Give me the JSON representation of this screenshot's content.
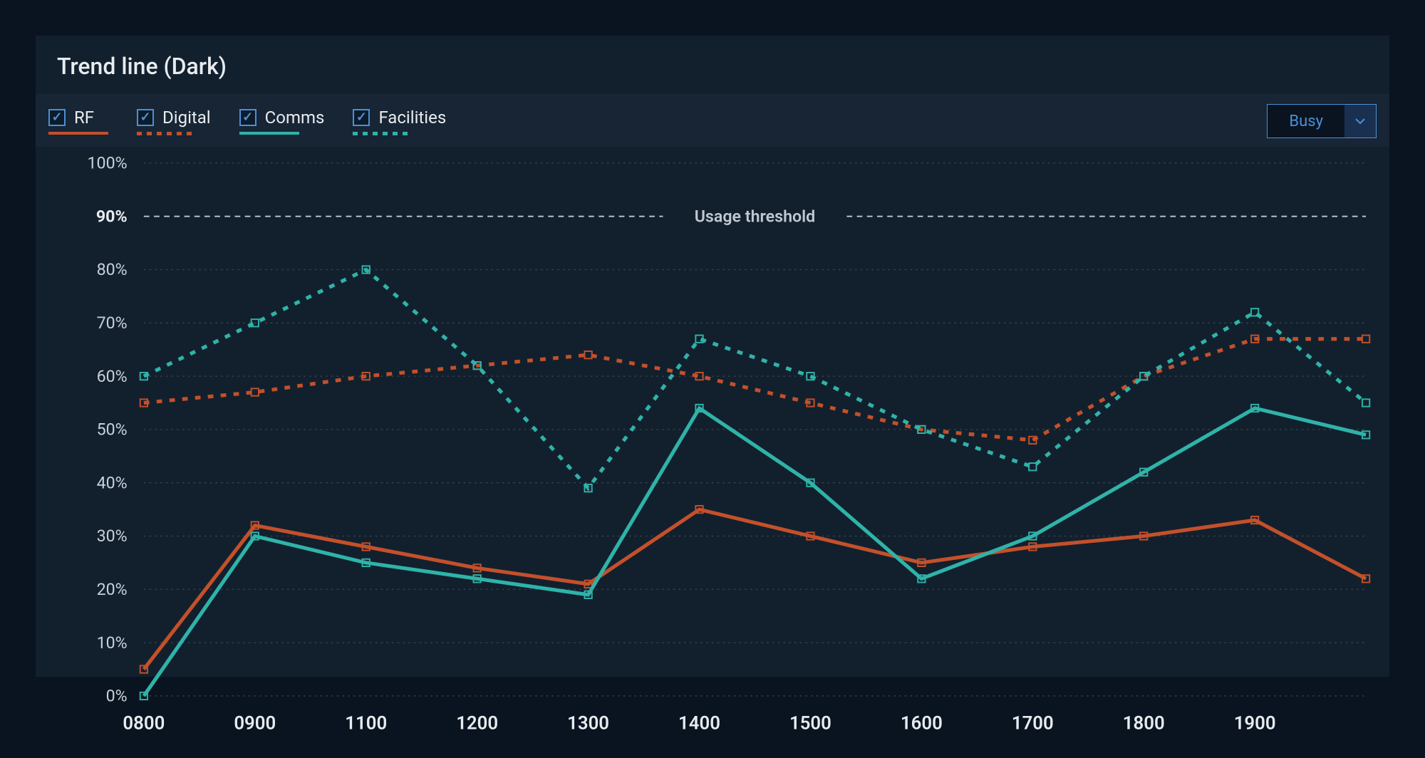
{
  "title": "Trend line (Dark)",
  "legend": [
    {
      "key": "rf",
      "label": "RF",
      "color": "#c4502a",
      "style": "solid",
      "checked": true
    },
    {
      "key": "digital",
      "label": "Digital",
      "color": "#c4502a",
      "style": "dotted",
      "checked": true
    },
    {
      "key": "comms",
      "label": "Comms",
      "color": "#2fb3a8",
      "style": "solid",
      "checked": true
    },
    {
      "key": "facilities",
      "label": "Facilities",
      "color": "#2fb3a8",
      "style": "dotted",
      "checked": true
    }
  ],
  "select": {
    "value": "Busy"
  },
  "chart": {
    "type": "line",
    "background_color": "#12202e",
    "grid_color": "#3a4550",
    "x_categories": [
      "0800",
      "0900",
      "1100",
      "1200",
      "1300",
      "1400",
      "1500",
      "1600",
      "1700",
      "1800",
      "1900"
    ],
    "x_positions": [
      0,
      1,
      2,
      3,
      4,
      5,
      6,
      7,
      8,
      9,
      10
    ],
    "x_extra_end": 11,
    "ylim": [
      0,
      100
    ],
    "ytick_step": 10,
    "threshold": {
      "value": 90,
      "label": "Usage threshold",
      "color": "#c0c8d0"
    },
    "line_width": 4,
    "dotted_dash": "6 8",
    "marker_size": 4,
    "series": [
      {
        "key": "rf",
        "color": "#c4502a",
        "style": "solid",
        "markers": true,
        "x": [
          0,
          1,
          2,
          3,
          4,
          5,
          6,
          7,
          8,
          9,
          10,
          11
        ],
        "y": [
          5,
          32,
          28,
          24,
          21,
          35,
          30,
          25,
          28,
          30,
          33,
          22
        ]
      },
      {
        "key": "digital",
        "color": "#c4502a",
        "style": "dotted",
        "markers": true,
        "x": [
          0,
          1,
          2,
          3,
          4,
          5,
          6,
          7,
          8,
          9,
          10,
          11
        ],
        "y": [
          55,
          57,
          60,
          62,
          64,
          60,
          55,
          50,
          48,
          60,
          67,
          67
        ]
      },
      {
        "key": "comms",
        "color": "#2fb3a8",
        "style": "solid",
        "markers": true,
        "x": [
          0,
          1,
          2,
          3,
          4,
          5,
          6,
          7,
          8,
          9,
          10,
          11
        ],
        "y": [
          0,
          30,
          25,
          22,
          19,
          54,
          40,
          22,
          30,
          42,
          54,
          49
        ]
      },
      {
        "key": "facilities",
        "color": "#2fb3a8",
        "style": "dotted",
        "markers": true,
        "x": [
          0,
          1,
          2,
          3,
          4,
          5,
          6,
          7,
          8,
          9,
          10,
          11
        ],
        "y": [
          60,
          70,
          80,
          62,
          39,
          67,
          60,
          50,
          43,
          60,
          72,
          55
        ]
      }
    ],
    "label_fontsize": 18,
    "xlabel_fontsize": 20
  },
  "colors": {
    "page_bg": "#0a1420",
    "panel_bg": "#12202e",
    "controls_bg": "#172535",
    "accent": "#4a90d9",
    "text": "#e8ecef",
    "text_muted": "#c8d0d8"
  }
}
